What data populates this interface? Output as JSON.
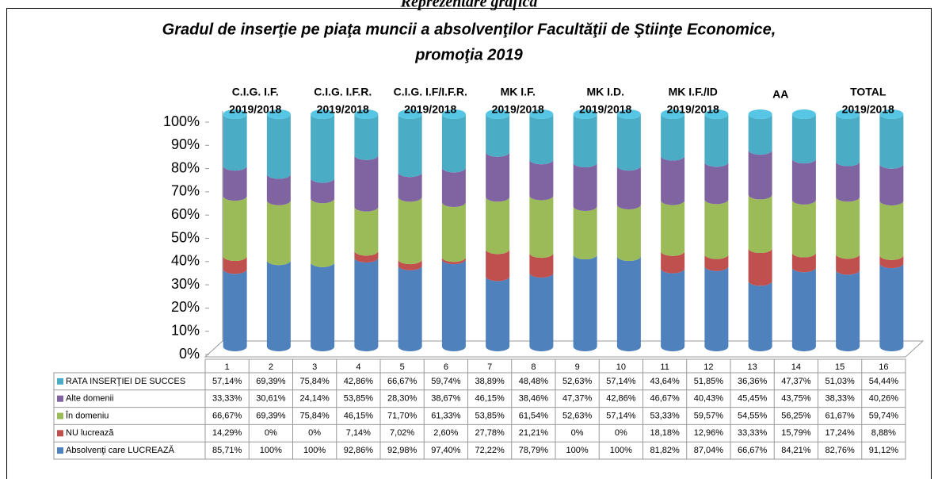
{
  "chart_data": {
    "type": "bar",
    "stacking": "percent",
    "cylinder_3d": true,
    "page_heading": "Reprezentare grafică",
    "title": [
      "Gradul de inserţie pe piaţa muncii a absolvenţilor Facultăţii de Ştiinţe Economice,",
      "promoţia 2019"
    ],
    "group_labels": [
      [
        "C.I.G. I.F.",
        "2019/2018"
      ],
      [
        "C.I.G. I.F.R.",
        "2019/2018"
      ],
      [
        "C.I.G. I.F/I.F.R.",
        "2019/2018"
      ],
      [
        "MK I.F.",
        "2019/2018"
      ],
      [
        "MK I.D.",
        "2019/2018"
      ],
      [
        "MK I.F./ID",
        "2019/2018"
      ],
      [
        "AA"
      ],
      [
        "TOTAL",
        "2019/2018"
      ]
    ],
    "categories": [
      "1",
      "2",
      "3",
      "4",
      "5",
      "6",
      "7",
      "8",
      "9",
      "10",
      "11",
      "12",
      "13",
      "14",
      "15",
      "16"
    ],
    "ylim": [
      0,
      100
    ],
    "yticks": [
      {
        "value": 0,
        "label": "0%"
      },
      {
        "value": 10,
        "label": "10%"
      },
      {
        "value": 20,
        "label": "20%"
      },
      {
        "value": 30,
        "label": "30%"
      },
      {
        "value": 40,
        "label": "40%"
      },
      {
        "value": 50,
        "label": "50%"
      },
      {
        "value": 60,
        "label": "60%"
      },
      {
        "value": 70,
        "label": "70%"
      },
      {
        "value": 80,
        "label": "80%"
      },
      {
        "value": 90,
        "label": "90%"
      },
      {
        "value": 100,
        "label": "100%"
      }
    ],
    "series": [
      {
        "name": "RATA INSERŢIEI DE SUCCES",
        "color": "#4bacc6",
        "values": [
          57.14,
          69.39,
          75.84,
          42.86,
          66.67,
          59.74,
          38.89,
          48.48,
          52.63,
          57.14,
          43.64,
          51.85,
          36.36,
          47.37,
          51.03,
          54.44
        ],
        "value_labels": [
          "57,14%",
          "69,39%",
          "75,84%",
          "42,86%",
          "66,67%",
          "59,74%",
          "38,89%",
          "48,48%",
          "52,63%",
          "57,14%",
          "43,64%",
          "51,85%",
          "36,36%",
          "47,37%",
          "51,03%",
          "54,44%"
        ]
      },
      {
        "name": "Alte domenii",
        "color": "#8064a2",
        "values": [
          33.33,
          30.61,
          24.14,
          53.85,
          28.3,
          38.67,
          46.15,
          38.46,
          47.37,
          42.86,
          46.67,
          40.43,
          45.45,
          43.75,
          38.33,
          40.26
        ],
        "value_labels": [
          "33,33%",
          "30,61%",
          "24,14%",
          "53,85%",
          "28,30%",
          "38,67%",
          "46,15%",
          "38,46%",
          "47,37%",
          "42,86%",
          "46,67%",
          "40,43%",
          "45,45%",
          "43,75%",
          "38,33%",
          "40,26%"
        ]
      },
      {
        "name": "În domeniu",
        "color": "#9bbb59",
        "values": [
          66.67,
          69.39,
          75.84,
          46.15,
          71.7,
          61.33,
          53.85,
          61.54,
          52.63,
          57.14,
          53.33,
          59.57,
          54.55,
          56.25,
          61.67,
          59.74
        ],
        "value_labels": [
          "66,67%",
          "69,39%",
          "75,84%",
          "46,15%",
          "71,70%",
          "61,33%",
          "53,85%",
          "61,54%",
          "52,63%",
          "57,14%",
          "53,33%",
          "59,57%",
          "54,55%",
          "56,25%",
          "61,67%",
          "59,74%"
        ]
      },
      {
        "name": "NU lucrează",
        "color": "#c0504d",
        "values": [
          14.29,
          0,
          0,
          7.14,
          7.02,
          2.6,
          27.78,
          21.21,
          0,
          0,
          18.18,
          12.96,
          33.33,
          15.79,
          17.24,
          8.88
        ],
        "value_labels": [
          "14,29%",
          "0%",
          "0%",
          "7,14%",
          "7,02%",
          "2,60%",
          "27,78%",
          "21,21%",
          "0%",
          "0%",
          "18,18%",
          "12,96%",
          "33,33%",
          "15,79%",
          "17,24%",
          "8,88%"
        ]
      },
      {
        "name": "Absolvenţi care LUCREAZĂ",
        "color": "#4f81bd",
        "values": [
          85.71,
          100,
          100,
          92.86,
          92.98,
          97.4,
          72.22,
          78.79,
          100,
          100,
          81.82,
          87.04,
          66.67,
          84.21,
          82.76,
          91.12
        ],
        "value_labels": [
          "85,71%",
          "100%",
          "100%",
          "92,86%",
          "92,98%",
          "97,40%",
          "72,22%",
          "78,79%",
          "100%",
          "100%",
          "81,82%",
          "87,04%",
          "66,67%",
          "84,21%",
          "82,76%",
          "91,12%"
        ]
      }
    ]
  }
}
